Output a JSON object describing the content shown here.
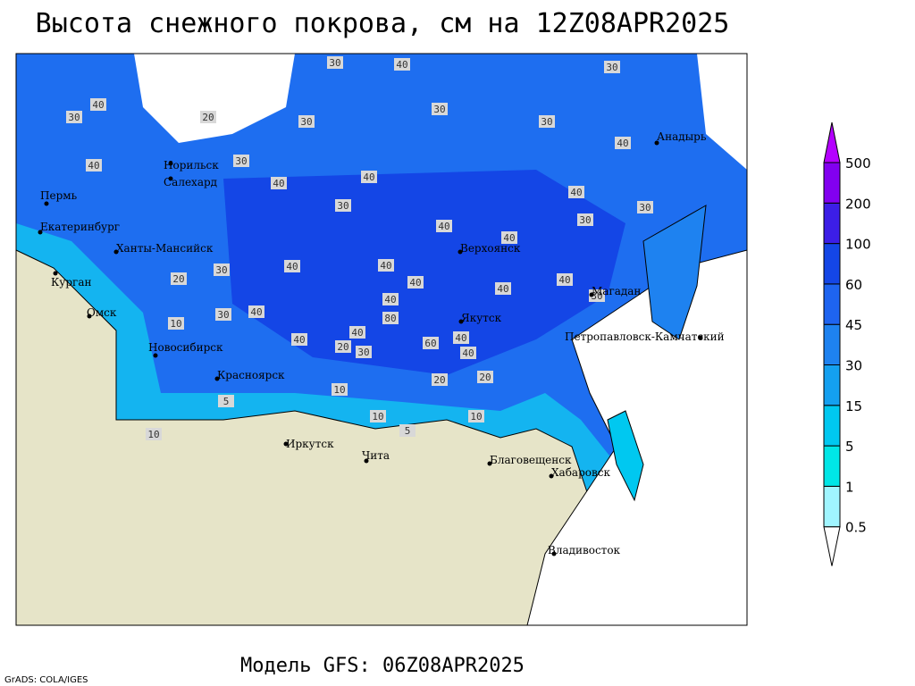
{
  "header": {
    "title": "Высота снежного покрова, см на 12Z08APR2025"
  },
  "map": {
    "cities": [
      {
        "name": "Норильск"
      },
      {
        "name": "Салехард"
      },
      {
        "name": "Пермь"
      },
      {
        "name": "Екатеринбург"
      },
      {
        "name": "Ханты-Мансийск"
      },
      {
        "name": "Курган"
      },
      {
        "name": "Омск"
      },
      {
        "name": "Новосибирск"
      },
      {
        "name": "Красноярск"
      },
      {
        "name": "Иркутск"
      },
      {
        "name": "Чита"
      },
      {
        "name": "Верхоянск"
      },
      {
        "name": "Якутск"
      },
      {
        "name": "Магадан"
      },
      {
        "name": "Анадырь"
      },
      {
        "name": "Петропавловск-Камчатский"
      },
      {
        "name": "Благовещенск"
      },
      {
        "name": "Хабаровск"
      },
      {
        "name": "Владивосток"
      }
    ],
    "contour_labels": [
      30,
      40,
      30,
      30,
      30,
      30,
      20,
      40,
      30,
      40,
      30,
      40,
      40,
      40,
      40,
      30,
      30,
      40,
      30,
      40,
      40,
      40,
      40,
      20,
      30,
      40,
      40,
      30,
      40,
      40,
      10,
      80,
      40,
      60,
      40,
      20,
      30,
      40,
      20,
      10,
      10,
      10,
      5,
      10,
      5,
      20,
      30,
      40
    ]
  },
  "legend": {
    "levels": [
      0.5,
      1,
      5,
      15,
      30,
      45,
      60,
      100,
      200,
      500
    ],
    "colors": [
      "#ffffff",
      "#a0f5ff",
      "#00e6e6",
      "#00c8f0",
      "#14a0f0",
      "#1e82f0",
      "#1e64f0",
      "#1446e6",
      "#3c1ee6",
      "#8200f0",
      "#b400ff"
    ]
  },
  "footer": {
    "model": "Модель GFS: 06Z08APR2025",
    "credit": "GrADS: COLA/IGES"
  }
}
